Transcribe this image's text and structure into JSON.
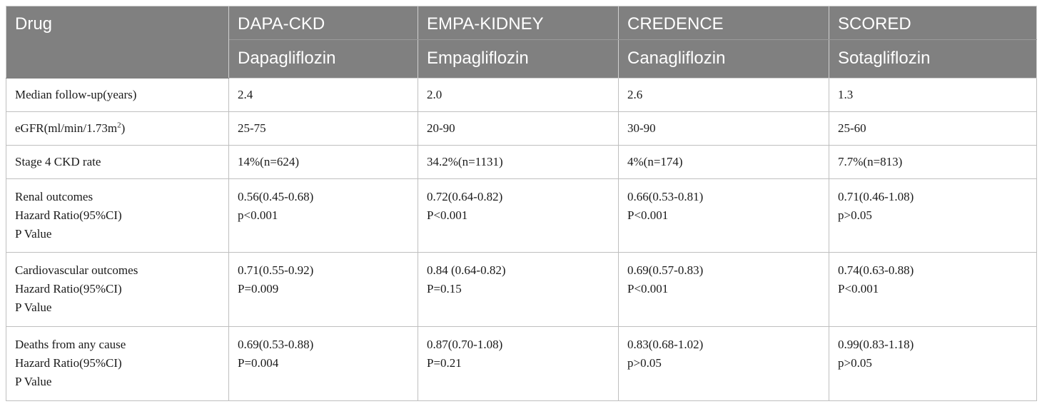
{
  "table": {
    "header": {
      "drug_label": "Drug",
      "trials": [
        {
          "trial": "DAPA-CKD",
          "drug": "Dapagliflozin"
        },
        {
          "trial": "EMPA-KIDNEY",
          "drug": "Empagliflozin"
        },
        {
          "trial": "CREDENCE",
          "drug": "Canagliflozin"
        },
        {
          "trial": "SCORED",
          "drug": "Sotagliflozin"
        }
      ]
    },
    "rows": {
      "followup": {
        "label": "Median follow-up(years)",
        "values": [
          "2.4",
          "2.0",
          "2.6",
          "1.3"
        ]
      },
      "egfr": {
        "label_main": "eGFR(ml/min/1.73m",
        "label_sup": "2",
        "label_end": ")",
        "values": [
          "25-75",
          "20-90",
          "30-90",
          "25-60"
        ]
      },
      "stage4": {
        "label": "Stage 4 CKD rate",
        "values": [
          "14%(n=624)",
          "34.2%(n=1131)",
          "4%(n=174)",
          "7.7%(n=813)"
        ]
      },
      "renal": {
        "label": [
          "Renal outcomes",
          "Hazard Ratio(95%CI)",
          "P Value"
        ],
        "hr": [
          "0.56(0.45-0.68)",
          "0.72(0.64-0.82)",
          "0.66(0.53-0.81)",
          "0.71(0.46-1.08)"
        ],
        "p": [
          "p<0.001",
          "P<0.001",
          "P<0.001",
          "p>0.05"
        ]
      },
      "cardio": {
        "label": [
          "Cardiovascular outcomes",
          "Hazard Ratio(95%CI)",
          "P Value"
        ],
        "hr": [
          "0.71(0.55-0.92)",
          "0.84 (0.64-0.82)",
          "0.69(0.57-0.83)",
          "0.74(0.63-0.88)"
        ],
        "p": [
          "P=0.009",
          "P=0.15",
          "P<0.001",
          "P<0.001"
        ]
      },
      "deaths": {
        "label": [
          "Deaths from any cause",
          "Hazard Ratio(95%CI)",
          "P Value"
        ],
        "hr": [
          "0.69(0.53-0.88)",
          "0.87(0.70-1.08)",
          "0.83(0.68-1.02)",
          "0.99(0.83-1.18)"
        ],
        "p": [
          "P=0.004",
          "P=0.21",
          "p>0.05",
          "p>0.05"
        ]
      }
    }
  }
}
